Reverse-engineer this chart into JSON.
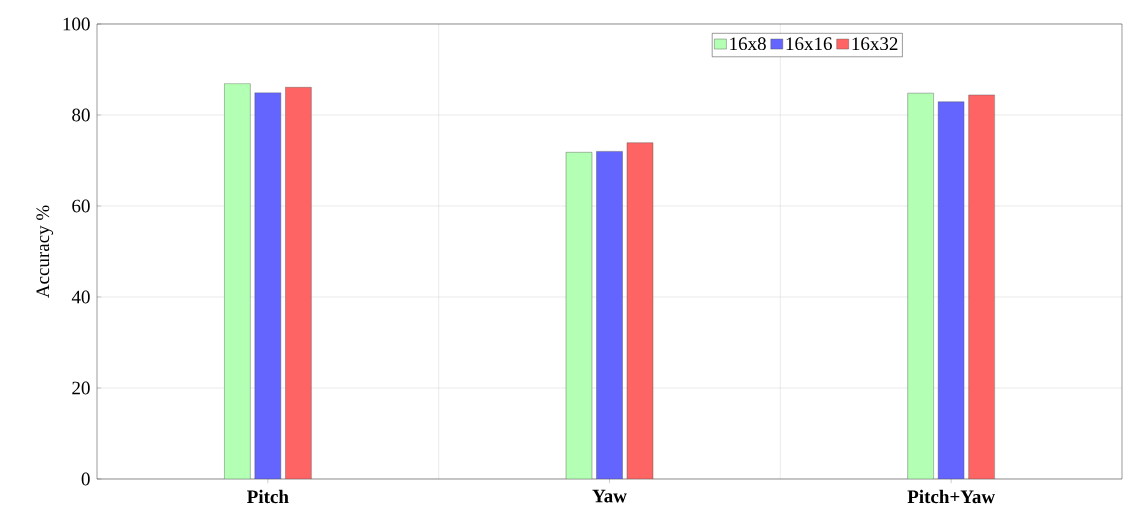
{
  "chart_data": {
    "type": "bar",
    "ylabel": "Accuracy %",
    "categories": [
      "**Pitch**",
      "**Yaw**",
      "**Pitch+Yaw**"
    ],
    "series": [
      {
        "name": "16x8",
        "color": "#b3ffb3",
        "values": [
          86.9,
          71.8,
          84.8
        ]
      },
      {
        "name": "16x16",
        "color": "#6464ff",
        "values": [
          84.9,
          72.0,
          82.9
        ]
      },
      {
        "name": "16x32",
        "color": "#ff6464",
        "values": [
          86.1,
          73.9,
          84.4
        ]
      }
    ],
    "ylim": [
      0,
      100
    ],
    "yticks": [
      0,
      20,
      40,
      60,
      80,
      100
    ],
    "grid": true,
    "legend": "top right"
  }
}
